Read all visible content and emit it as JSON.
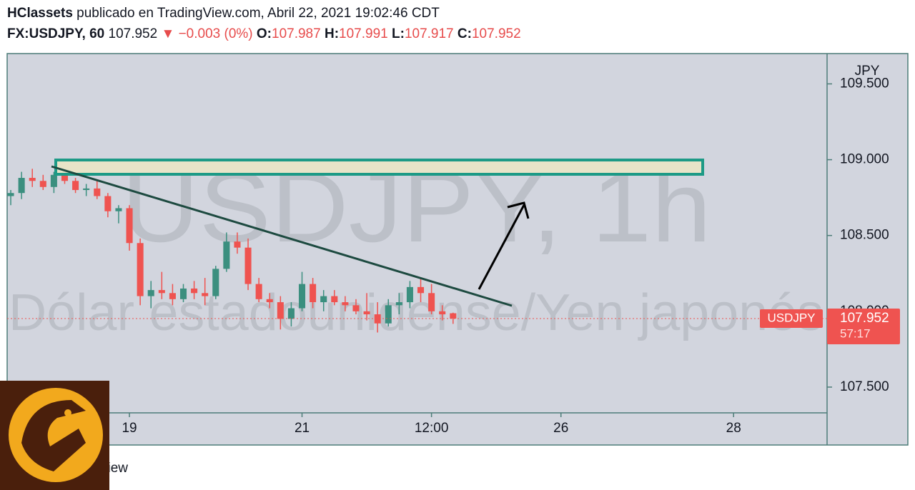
{
  "chart_data": {
    "type": "candlestick",
    "title": "HClassets",
    "subtitle": "publicado en TradingView.com, Abril 22, 2021 19:02:46 CDT",
    "symbol": "FX:USDJPY, 60",
    "change": "▼ −0.003 (0%)",
    "ohlc_labels": [
      "O:",
      "H:",
      "L:",
      "C:"
    ],
    "watermark": [
      "USDJPY, 1h",
      "Dólar estadounidense/Yen japonés"
    ],
    "currency": "JPY",
    "price_label": "USDJPY",
    "countdown": "57:17",
    "footer": "TradingView",
    "up_color": "#3b8f7f",
    "down_color": "#ef5350",
    "xlim": [
      -34,
      194
    ],
    "ylim": [
      107.33,
      109.7
    ],
    "xticks": [
      {
        "value": 0,
        "label": "19"
      },
      {
        "value": 48,
        "label": "21"
      },
      {
        "value": 84,
        "label": "12:00"
      },
      {
        "value": 120,
        "label": "26"
      },
      {
        "value": 168,
        "label": "28"
      }
    ],
    "yticks": [
      {
        "value": 109.5,
        "label": "109.500"
      },
      {
        "value": 109,
        "label": "109.000"
      },
      {
        "value": 108.5,
        "label": "108.500"
      },
      {
        "value": 108,
        "label": "108.000"
      },
      {
        "value": 107.5,
        "label": "107.500"
      }
    ],
    "x": [
      -33,
      -30,
      -27,
      -24,
      -21,
      -18,
      -15,
      -12,
      -9,
      -6,
      -3,
      0,
      3,
      6,
      9,
      12,
      15,
      18,
      21,
      24,
      27,
      30,
      33,
      36,
      39,
      42,
      45,
      48,
      51,
      54,
      57,
      60,
      63,
      66,
      69,
      72,
      75,
      78,
      81,
      84,
      87,
      90
    ],
    "ohlc": [
      [
        108.76,
        108.8,
        108.7,
        108.78
      ],
      [
        108.78,
        108.92,
        108.74,
        108.88
      ],
      [
        108.88,
        108.94,
        108.82,
        108.86
      ],
      [
        108.86,
        108.9,
        108.8,
        108.82
      ],
      [
        108.82,
        108.92,
        108.78,
        108.9
      ],
      [
        108.9,
        108.94,
        108.84,
        108.86
      ],
      [
        108.86,
        108.88,
        108.78,
        108.8
      ],
      [
        108.8,
        108.84,
        108.76,
        108.81
      ],
      [
        108.81,
        108.86,
        108.74,
        108.76
      ],
      [
        108.76,
        108.78,
        108.62,
        108.66
      ],
      [
        108.66,
        108.7,
        108.58,
        108.68
      ],
      [
        108.68,
        108.7,
        108.4,
        108.45
      ],
      [
        108.45,
        108.48,
        108.04,
        108.1
      ],
      [
        108.1,
        108.2,
        108.02,
        108.14
      ],
      [
        108.14,
        108.26,
        108.08,
        108.12
      ],
      [
        108.12,
        108.18,
        108.04,
        108.08
      ],
      [
        108.08,
        108.18,
        108.06,
        108.15
      ],
      [
        108.15,
        108.2,
        108.08,
        108.12
      ],
      [
        108.12,
        108.22,
        108.04,
        108.1
      ],
      [
        108.1,
        108.3,
        108.08,
        108.28
      ],
      [
        108.28,
        108.52,
        108.26,
        108.46
      ],
      [
        108.46,
        108.52,
        108.38,
        108.42
      ],
      [
        108.42,
        108.48,
        108.14,
        108.18
      ],
      [
        108.18,
        108.22,
        108.06,
        108.08
      ],
      [
        108.08,
        108.12,
        108.02,
        108.06
      ],
      [
        108.06,
        108.1,
        107.88,
        107.95
      ],
      [
        107.95,
        108.06,
        107.9,
        108.02
      ],
      [
        108.02,
        108.26,
        108.0,
        108.18
      ],
      [
        108.18,
        108.22,
        108.02,
        108.06
      ],
      [
        108.06,
        108.14,
        108.0,
        108.1
      ],
      [
        108.1,
        108.14,
        108.04,
        108.06
      ],
      [
        108.06,
        108.1,
        108.0,
        108.04
      ],
      [
        108.04,
        108.08,
        107.98,
        108.0
      ],
      [
        108.0,
        108.12,
        107.94,
        107.98
      ],
      [
        107.98,
        108.06,
        107.86,
        107.92
      ],
      [
        107.92,
        108.08,
        107.9,
        108.04
      ],
      [
        108.04,
        108.12,
        107.98,
        108.06
      ],
      [
        108.06,
        108.2,
        108.02,
        108.16
      ],
      [
        108.16,
        108.22,
        108.06,
        108.12
      ],
      [
        108.12,
        108.18,
        107.98,
        108.0
      ],
      [
        108.0,
        108.04,
        107.94,
        107.98
      ],
      [
        107.987,
        107.991,
        107.917,
        107.952
      ]
    ]
  }
}
